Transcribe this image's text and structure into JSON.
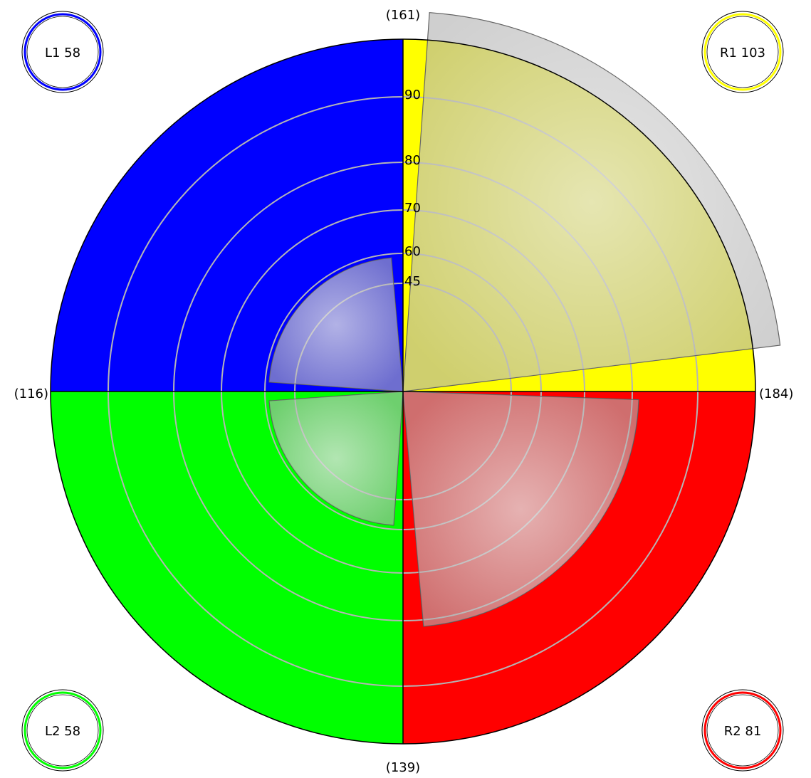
{
  "chart_data": {
    "type": "polar-area",
    "rings": [
      45,
      60,
      70,
      80,
      90
    ],
    "ring_labels": [
      "45",
      "60",
      "70",
      "80",
      "90"
    ],
    "quadrants": [
      {
        "key": "R1",
        "color": "#ffff00",
        "value": 103,
        "edge_label": "(161)",
        "badge": "R1 103"
      },
      {
        "key": "R2",
        "color": "#ff0000",
        "value": 81,
        "edge_label": "(184)",
        "badge": "R2 81"
      },
      {
        "key": "L2",
        "color": "#00ff00",
        "value": 58,
        "edge_label": "(139)",
        "badge": "L2 58"
      },
      {
        "key": "L1",
        "color": "#0000ff",
        "value": 58,
        "edge_label": "(116)",
        "badge": "L1 58"
      }
    ]
  }
}
